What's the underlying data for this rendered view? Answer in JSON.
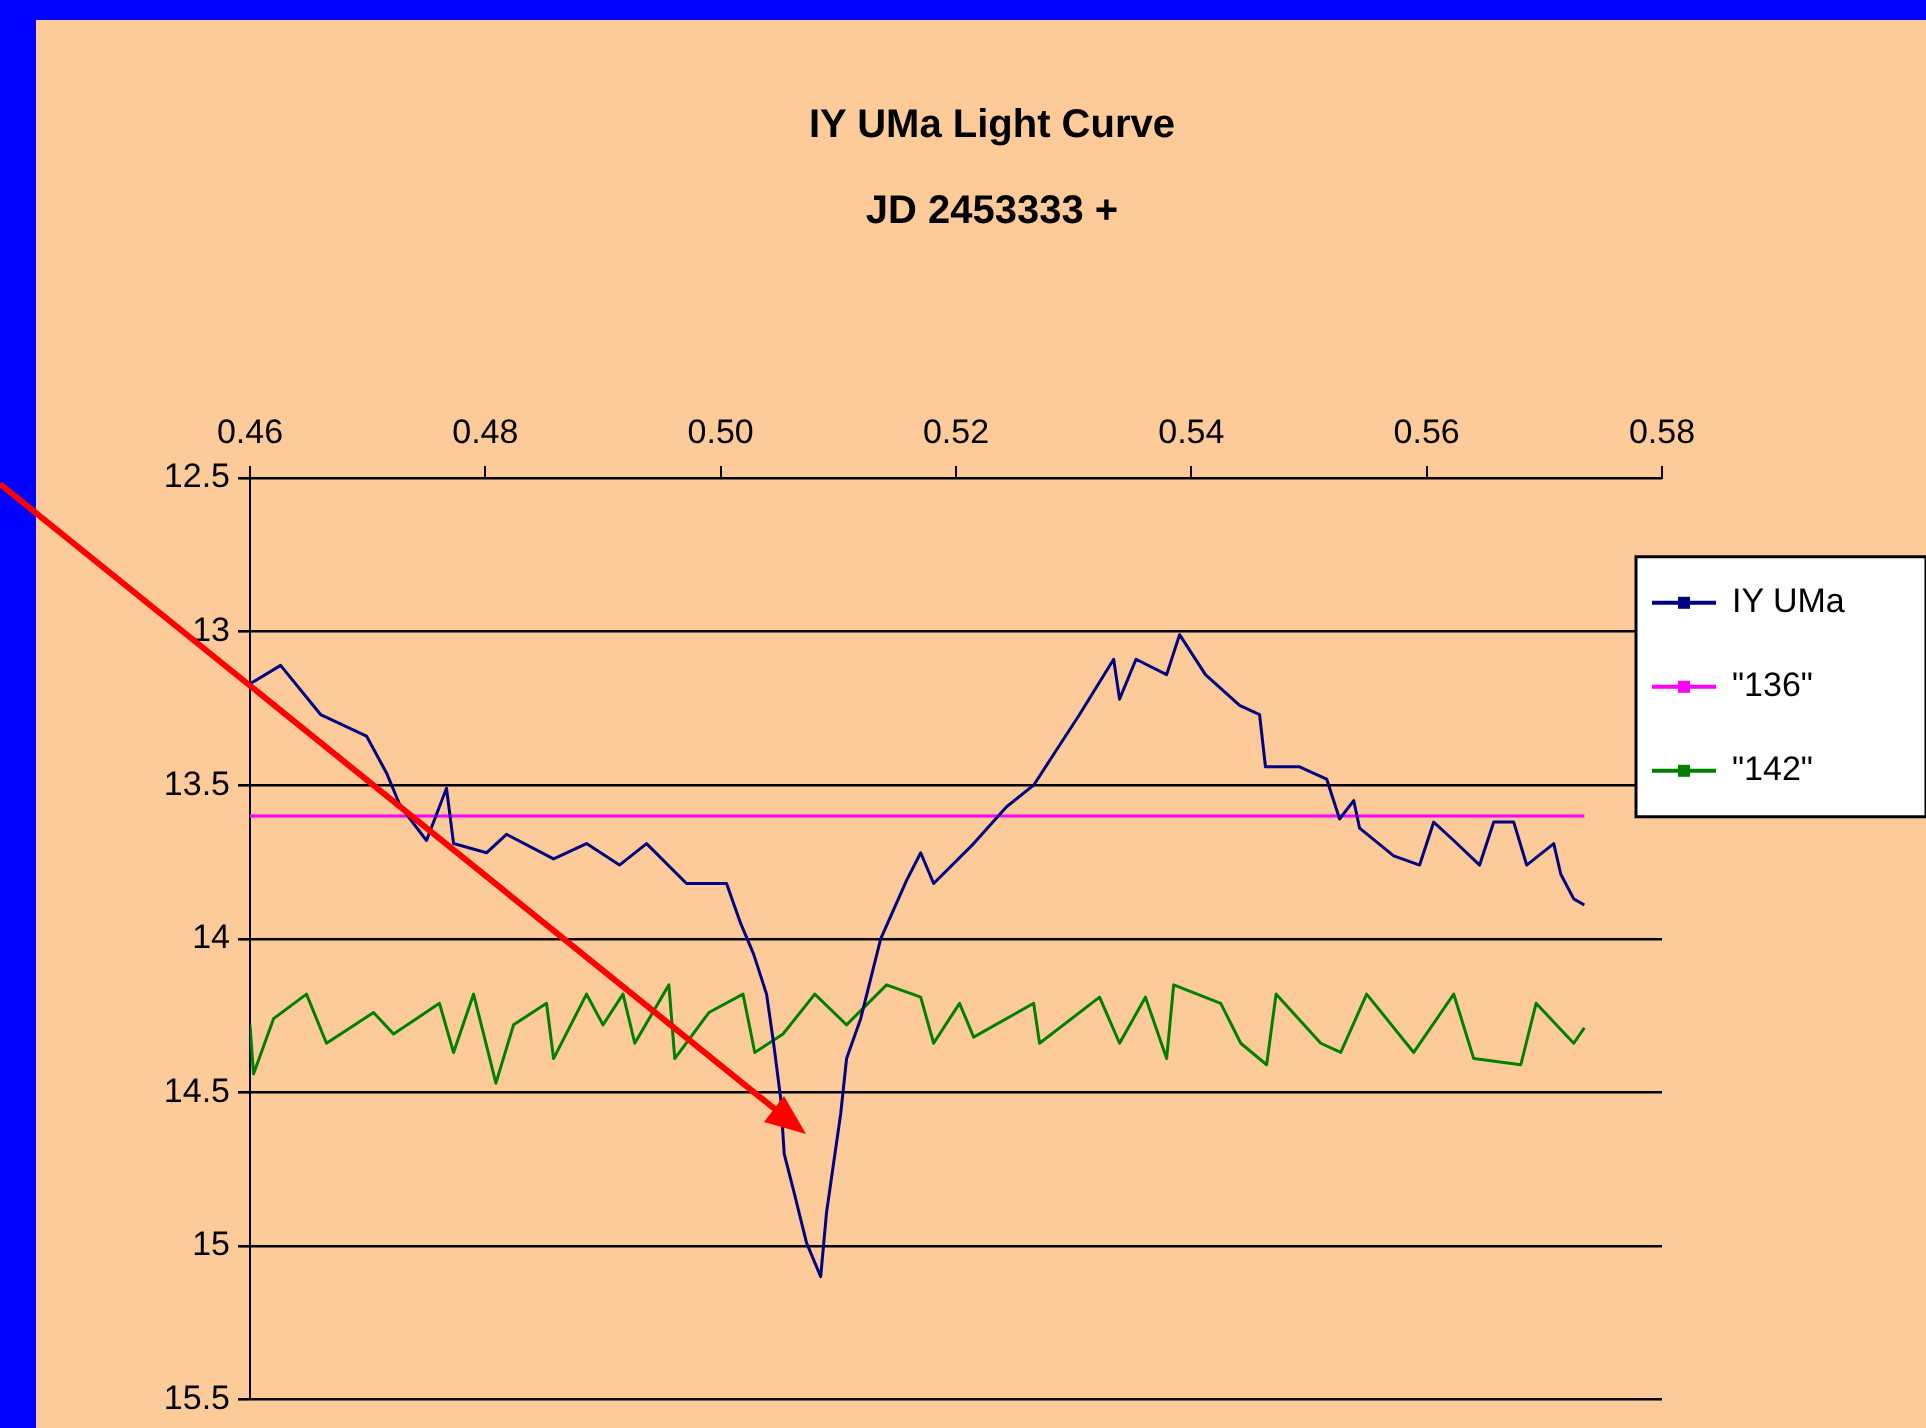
{
  "chart_data": {
    "type": "line",
    "title": "IY UMa Light Curve",
    "subtitle": "JD 2453333 +",
    "xlim": [
      0.46,
      0.58
    ],
    "xticks": [
      0.46,
      0.48,
      {
        "value": 0.5,
        "label": "0.50"
      },
      0.52,
      0.54,
      0.56,
      0.58
    ],
    "ylim": [
      15.5,
      12.5
    ],
    "yticks": [
      12.5,
      13,
      13.5,
      14,
      14.5,
      15,
      15.5
    ],
    "grid": "y",
    "legend": "right",
    "series": [
      {
        "name": "IY UMa",
        "color": "#000080",
        "x": [
          0.46,
          0.4626,
          0.466,
          0.4699,
          0.4716,
          0.4728,
          0.475,
          0.4767,
          0.4773,
          0.4801,
          0.4818,
          0.4858,
          0.4886,
          0.4914,
          0.4937,
          0.4971,
          0.5005,
          0.5017,
          0.5028,
          0.5039,
          0.5045,
          0.5051,
          0.5054,
          0.5062,
          0.5073,
          0.5085,
          0.509,
          0.5096,
          0.5102,
          0.5107,
          0.5119,
          0.5136,
          0.5158,
          0.517,
          0.5181,
          0.5215,
          0.5243,
          0.5266,
          0.5288,
          0.5305,
          0.5334,
          0.5339,
          0.5353,
          0.5379,
          0.539,
          0.5412,
          0.5441,
          0.5458,
          0.5463,
          0.5492,
          0.5515,
          0.5526,
          0.5538,
          0.5543,
          0.5572,
          0.5594,
          0.5606,
          0.5623,
          0.5645,
          0.5657,
          0.5674,
          0.5685,
          0.5708,
          0.5714,
          0.5725,
          0.5734
        ],
        "values": [
          13.17,
          13.11,
          13.27,
          13.34,
          13.46,
          13.57,
          13.68,
          13.51,
          13.69,
          13.72,
          13.66,
          13.74,
          13.69,
          13.76,
          13.69,
          13.82,
          13.82,
          13.95,
          14.05,
          14.18,
          14.34,
          14.52,
          14.7,
          14.82,
          14.99,
          15.1,
          14.89,
          14.73,
          14.57,
          14.39,
          14.26,
          14.0,
          13.81,
          13.72,
          13.82,
          13.69,
          13.57,
          13.5,
          13.37,
          13.27,
          13.09,
          13.22,
          13.09,
          13.14,
          13.01,
          13.14,
          13.24,
          13.27,
          13.44,
          13.44,
          13.48,
          13.61,
          13.55,
          13.64,
          13.73,
          13.76,
          13.62,
          13.68,
          13.76,
          13.62,
          13.62,
          13.76,
          13.69,
          13.79,
          13.87,
          13.89
        ]
      },
      {
        "name": "\"136\"",
        "color": "#ff00ff",
        "x": [
          0.46,
          0.5734
        ],
        "values": [
          13.6,
          13.6
        ]
      },
      {
        "name": "\"142\"",
        "color": "#008000",
        "x": [
          0.46,
          0.4603,
          0.462,
          0.4648,
          0.4665,
          0.4705,
          0.4722,
          0.4761,
          0.4773,
          0.479,
          0.4809,
          0.4824,
          0.4852,
          0.4858,
          0.4886,
          0.49,
          0.4917,
          0.4927,
          0.4956,
          0.4961,
          0.499,
          0.5019,
          0.5029,
          0.5053,
          0.508,
          0.5107,
          0.5141,
          0.517,
          0.5181,
          0.5203,
          0.5215,
          0.5266,
          0.5271,
          0.5322,
          0.5339,
          0.5361,
          0.5379,
          0.5385,
          0.5425,
          0.5442,
          0.5464,
          0.5472,
          0.551,
          0.5527,
          0.5549,
          0.5589,
          0.5623,
          0.564,
          0.568,
          0.5693,
          0.5725,
          0.5734
        ],
        "values": [
          14.28,
          14.44,
          14.26,
          14.18,
          14.34,
          14.24,
          14.31,
          14.21,
          14.37,
          14.18,
          14.47,
          14.28,
          14.21,
          14.39,
          14.18,
          14.28,
          14.18,
          14.34,
          14.15,
          14.39,
          14.24,
          14.18,
          14.37,
          14.31,
          14.18,
          14.28,
          14.15,
          14.19,
          14.34,
          14.21,
          14.32,
          14.21,
          14.34,
          14.19,
          14.34,
          14.19,
          14.39,
          14.15,
          14.21,
          14.34,
          14.41,
          14.18,
          14.34,
          14.37,
          14.18,
          14.37,
          14.18,
          14.39,
          14.41,
          14.21,
          14.34,
          14.29
        ]
      }
    ]
  }
}
